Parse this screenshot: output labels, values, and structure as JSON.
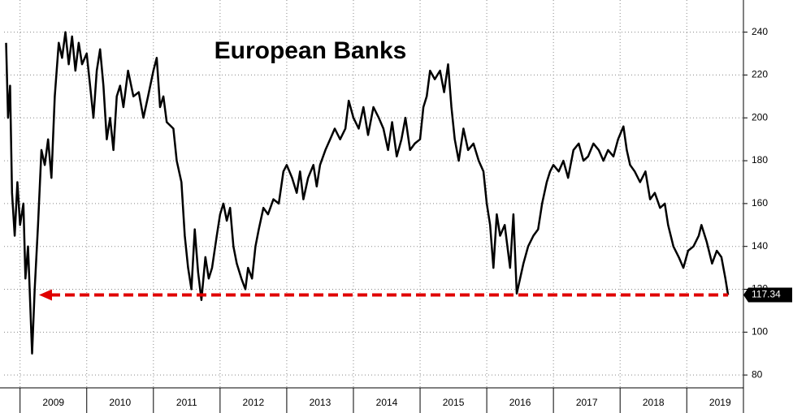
{
  "chart_data": {
    "type": "line",
    "title": "European Banks",
    "x": [
      2008.79,
      2008.82,
      2008.85,
      2008.88,
      2008.92,
      2008.96,
      2009.0,
      2009.05,
      2009.08,
      2009.12,
      2009.15,
      2009.18,
      2009.22,
      2009.27,
      2009.32,
      2009.37,
      2009.42,
      2009.47,
      2009.52,
      2009.58,
      2009.63,
      2009.68,
      2009.73,
      2009.78,
      2009.83,
      2009.88,
      2009.93,
      2010.0,
      2010.05,
      2010.1,
      2010.15,
      2010.2,
      2010.25,
      2010.3,
      2010.35,
      2010.4,
      2010.45,
      2010.5,
      2010.55,
      2010.62,
      2010.7,
      2010.78,
      2010.85,
      2010.92,
      2011.0,
      2011.05,
      2011.1,
      2011.15,
      2011.2,
      2011.3,
      2011.35,
      2011.42,
      2011.47,
      2011.52,
      2011.57,
      2011.62,
      2011.67,
      2011.72,
      2011.78,
      2011.83,
      2011.88,
      2011.95,
      2012.0,
      2012.05,
      2012.1,
      2012.15,
      2012.2,
      2012.25,
      2012.32,
      2012.38,
      2012.42,
      2012.48,
      2012.53,
      2012.58,
      2012.65,
      2012.72,
      2012.8,
      2012.88,
      2012.95,
      2013.0,
      2013.08,
      2013.15,
      2013.2,
      2013.25,
      2013.32,
      2013.4,
      2013.45,
      2013.5,
      2013.58,
      2013.65,
      2013.72,
      2013.8,
      2013.88,
      2013.93,
      2014.0,
      2014.08,
      2014.15,
      2014.22,
      2014.3,
      2014.38,
      2014.45,
      2014.52,
      2014.58,
      2014.65,
      2014.72,
      2014.78,
      2014.85,
      2014.92,
      2015.0,
      2015.05,
      2015.1,
      2015.15,
      2015.22,
      2015.3,
      2015.36,
      2015.42,
      2015.47,
      2015.52,
      2015.58,
      2015.65,
      2015.72,
      2015.8,
      2015.88,
      2015.95,
      2016.0,
      2016.05,
      2016.1,
      2016.15,
      2016.2,
      2016.27,
      2016.35,
      2016.4,
      2016.45,
      2016.5,
      2016.55,
      2016.62,
      2016.7,
      2016.77,
      2016.83,
      2016.9,
      2016.95,
      2017.0,
      2017.08,
      2017.15,
      2017.22,
      2017.3,
      2017.38,
      2017.45,
      2017.52,
      2017.6,
      2017.68,
      2017.75,
      2017.82,
      2017.9,
      2017.97,
      2018.05,
      2018.1,
      2018.15,
      2018.22,
      2018.3,
      2018.38,
      2018.45,
      2018.52,
      2018.6,
      2018.67,
      2018.72,
      2018.8,
      2018.88,
      2018.95,
      2019.02,
      2019.1,
      2019.18,
      2019.22,
      2019.3,
      2019.38,
      2019.45,
      2019.52,
      2019.58,
      2019.62
    ],
    "values": [
      235,
      200,
      215,
      165,
      145,
      170,
      150,
      160,
      125,
      140,
      115,
      90,
      120,
      150,
      185,
      178,
      190,
      172,
      210,
      235,
      228,
      240,
      225,
      238,
      222,
      235,
      225,
      230,
      215,
      200,
      222,
      232,
      215,
      190,
      200,
      185,
      210,
      215,
      205,
      222,
      210,
      212,
      200,
      210,
      222,
      228,
      205,
      210,
      198,
      195,
      180,
      170,
      145,
      130,
      120,
      148,
      128,
      115,
      135,
      125,
      130,
      145,
      155,
      160,
      152,
      158,
      140,
      132,
      125,
      120,
      130,
      125,
      140,
      148,
      158,
      155,
      162,
      160,
      175,
      178,
      172,
      165,
      175,
      162,
      172,
      178,
      168,
      178,
      185,
      190,
      195,
      190,
      195,
      208,
      200,
      195,
      205,
      192,
      205,
      200,
      195,
      185,
      198,
      182,
      190,
      200,
      185,
      188,
      190,
      205,
      210,
      222,
      218,
      222,
      212,
      225,
      205,
      190,
      180,
      195,
      185,
      188,
      180,
      175,
      160,
      150,
      130,
      155,
      145,
      150,
      130,
      155,
      118,
      125,
      132,
      140,
      145,
      148,
      160,
      170,
      175,
      178,
      175,
      180,
      172,
      185,
      188,
      180,
      182,
      188,
      185,
      180,
      185,
      182,
      190,
      196,
      185,
      178,
      175,
      170,
      175,
      162,
      165,
      158,
      160,
      150,
      140,
      135,
      130,
      138,
      140,
      145,
      150,
      142,
      132,
      138,
      135,
      125,
      117.34
    ],
    "color": "#000000",
    "xlim": [
      2008.76,
      2019.85
    ],
    "xticks": [
      {
        "value": 2009.5,
        "label": "2009"
      },
      {
        "value": 2010.5,
        "label": "2010"
      },
      {
        "value": 2011.5,
        "label": "2011"
      },
      {
        "value": 2012.5,
        "label": "2012"
      },
      {
        "value": 2013.5,
        "label": "2013"
      },
      {
        "value": 2014.5,
        "label": "2014"
      },
      {
        "value": 2015.5,
        "label": "2015"
      },
      {
        "value": 2016.5,
        "label": "2016"
      },
      {
        "value": 2017.5,
        "label": "2017"
      },
      {
        "value": 2018.5,
        "label": "2018"
      },
      {
        "value": 2019.5,
        "label": "2019"
      }
    ],
    "ylim": [
      74,
      255
    ],
    "yticks": [
      80,
      100,
      120,
      140,
      160,
      180,
      200,
      220,
      240
    ],
    "grid": true,
    "reference_color": "#e00000"
  }
}
